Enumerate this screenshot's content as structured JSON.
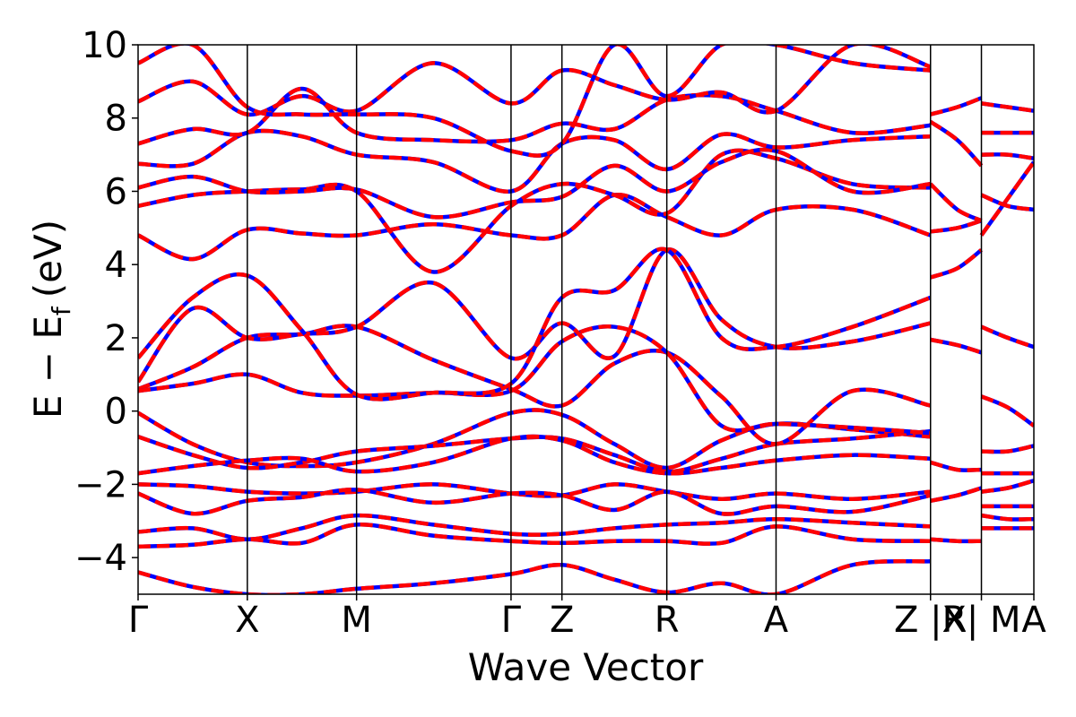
{
  "chart_data": {
    "type": "line",
    "title": "",
    "xlabel": "Wave Vector",
    "ylabel": "E − E",
    "ylabel_subscript": "f",
    "ylabel_unit": "(eV)",
    "ylim": [
      -5,
      10
    ],
    "y_ticks": [
      -4,
      -2,
      0,
      2,
      4,
      6,
      8,
      10
    ],
    "y_tick_labels": [
      "−4",
      "−2",
      "0",
      "2",
      "4",
      "6",
      "8",
      "10"
    ],
    "k_path_positions": [
      0,
      0.5,
      1.0,
      1.707,
      1.94,
      2.42,
      2.92,
      3.627,
      3.86,
      4.1
    ],
    "k_point_labels": [
      "Γ",
      "X",
      "M",
      "Γ",
      "Z",
      "R",
      "A",
      "Z |R",
      "X| M",
      "A"
    ],
    "grid": false,
    "colors": {
      "band_solid": "#ff0000",
      "band_dashed": "#0000ff"
    },
    "series": [
      {
        "x": [
          0,
          0.25,
          0.5,
          0.75,
          1.0,
          1.35,
          1.707,
          1.94,
          2.18,
          2.42,
          2.67,
          2.92,
          3.27,
          3.627
        ],
        "y": [
          -0.05,
          -0.9,
          -1.4,
          -1.5,
          -1.4,
          -0.9,
          -0.05,
          -0.1,
          -0.9,
          -1.55,
          -0.8,
          -0.35,
          -0.5,
          -0.7
        ]
      },
      {
        "x": [
          0,
          0.25,
          0.5,
          0.75,
          1.0,
          1.35,
          1.707,
          1.94,
          2.18,
          2.42,
          2.67,
          2.92,
          3.27,
          3.627
        ],
        "y": [
          -0.7,
          -1.2,
          -1.55,
          -1.4,
          -1.1,
          -0.95,
          -0.75,
          -0.75,
          -1.2,
          -1.65,
          -1.3,
          -0.9,
          -0.75,
          -0.55
        ]
      },
      {
        "x": [
          0,
          0.25,
          0.5,
          0.75,
          1.0,
          1.35,
          1.707,
          1.94,
          2.18,
          2.42,
          2.67,
          2.92,
          3.27,
          3.627
        ],
        "y": [
          -1.7,
          -1.5,
          -1.35,
          -1.3,
          -1.65,
          -1.4,
          -0.75,
          -0.8,
          -1.4,
          -1.7,
          -1.55,
          -1.35,
          -1.2,
          -1.3
        ]
      },
      {
        "x": [
          0,
          0.25,
          0.5,
          0.75,
          1.0,
          1.35,
          1.707,
          1.94,
          2.18,
          2.42,
          2.67,
          2.92,
          3.27,
          3.627
        ],
        "y": [
          -2.0,
          -2.05,
          -2.2,
          -2.25,
          -2.2,
          -2.0,
          -2.25,
          -2.3,
          -2.0,
          -2.2,
          -2.4,
          -2.25,
          -2.4,
          -2.2
        ]
      },
      {
        "x": [
          0,
          0.25,
          0.5,
          0.75,
          1.0,
          1.35,
          1.707,
          1.94,
          2.18,
          2.42,
          2.67,
          2.92,
          3.27,
          3.627
        ],
        "y": [
          -2.25,
          -2.8,
          -2.45,
          -2.35,
          -2.15,
          -2.5,
          -2.25,
          -2.3,
          -2.7,
          -2.2,
          -2.8,
          -2.6,
          -2.75,
          -2.3
        ]
      },
      {
        "x": [
          0,
          0.25,
          0.5,
          0.75,
          1.0,
          1.35,
          1.707,
          1.94,
          2.18,
          2.42,
          2.67,
          2.92,
          3.27,
          3.627
        ],
        "y": [
          -3.3,
          -3.2,
          -3.5,
          -3.2,
          -2.85,
          -3.1,
          -3.35,
          -3.35,
          -3.2,
          -3.1,
          -3.05,
          -2.95,
          -3.05,
          -3.15
        ]
      },
      {
        "x": [
          0,
          0.25,
          0.5,
          0.75,
          1.0,
          1.35,
          1.707,
          1.94,
          2.18,
          2.42,
          2.67,
          2.92,
          3.27,
          3.627
        ],
        "y": [
          -3.7,
          -3.65,
          -3.5,
          -3.6,
          -3.1,
          -3.4,
          -3.55,
          -3.6,
          -3.55,
          -3.55,
          -3.6,
          -3.15,
          -3.5,
          -3.55
        ]
      },
      {
        "x": [
          0,
          0.25,
          0.5,
          0.75,
          1.0,
          1.35,
          1.707,
          1.94,
          2.18,
          2.42,
          2.67,
          2.92,
          3.27,
          3.627
        ],
        "y": [
          -4.4,
          -4.8,
          -5.0,
          -5.0,
          -4.85,
          -4.7,
          -4.45,
          -4.2,
          -4.6,
          -4.95,
          -4.7,
          -5.0,
          -4.2,
          -4.1
        ]
      },
      {
        "x": [
          0,
          0.25,
          0.5,
          0.75,
          1.0,
          1.35,
          1.707,
          1.94,
          2.18,
          2.42,
          2.67,
          2.92,
          3.27,
          3.627
        ],
        "y": [
          0.6,
          1.2,
          2.0,
          2.1,
          2.3,
          1.4,
          0.6,
          0.15,
          1.3,
          1.6,
          0.4,
          -0.9,
          0.55,
          0.15
        ]
      },
      {
        "x": [
          0,
          0.25,
          0.5,
          0.75,
          1.0,
          1.35,
          1.707,
          1.94,
          2.18,
          2.42,
          2.67,
          2.92,
          3.27,
          3.627
        ],
        "y": [
          0.55,
          0.75,
          1.0,
          0.5,
          0.42,
          0.5,
          0.55,
          1.9,
          2.3,
          1.6,
          -0.4,
          -0.35,
          -0.45,
          -0.6
        ]
      },
      {
        "x": [
          0,
          0.25,
          0.5,
          0.75,
          1.0,
          1.35,
          1.707,
          1.94,
          2.18,
          2.42,
          2.67,
          2.92,
          3.27,
          3.627
        ],
        "y": [
          0.8,
          2.8,
          2.0,
          2.1,
          2.3,
          3.5,
          1.45,
          2.4,
          1.5,
          4.4,
          2.5,
          1.75,
          1.9,
          2.4
        ]
      },
      {
        "x": [
          0,
          0.25,
          0.5,
          0.75,
          1.0,
          1.35,
          1.707,
          1.94,
          2.18,
          2.42,
          2.67,
          2.92,
          3.27,
          3.627
        ],
        "y": [
          1.45,
          3.1,
          3.7,
          2.2,
          0.45,
          0.5,
          0.75,
          3.1,
          3.3,
          4.4,
          2.0,
          1.75,
          2.3,
          3.1
        ]
      },
      {
        "x": [
          0,
          0.25,
          0.5,
          0.75,
          1.0,
          1.35,
          1.707,
          1.94,
          2.18,
          2.42,
          2.67,
          2.92,
          3.27,
          3.627
        ],
        "y": [
          4.8,
          4.15,
          4.95,
          4.85,
          4.8,
          5.1,
          4.8,
          4.8,
          5.9,
          5.3,
          4.8,
          5.5,
          5.5,
          4.8
        ]
      },
      {
        "x": [
          0,
          0.25,
          0.5,
          0.75,
          1.0,
          1.35,
          1.707,
          1.94,
          2.18,
          2.42,
          2.67,
          2.92,
          3.27,
          3.627
        ],
        "y": [
          5.6,
          5.9,
          6.0,
          6.05,
          6.0,
          3.8,
          5.6,
          6.2,
          5.9,
          5.4,
          7.0,
          6.9,
          6.2,
          6.1
        ]
      },
      {
        "x": [
          0,
          0.25,
          0.5,
          0.75,
          1.0,
          1.35,
          1.707,
          1.94,
          2.18,
          2.42,
          2.67,
          2.92,
          3.27,
          3.627
        ],
        "y": [
          6.1,
          6.4,
          6.0,
          6.0,
          6.05,
          5.3,
          5.7,
          5.85,
          6.7,
          6.0,
          6.8,
          7.1,
          6.0,
          6.2
        ]
      },
      {
        "x": [
          0,
          0.25,
          0.5,
          0.75,
          1.0,
          1.35,
          1.707,
          1.94,
          2.18,
          2.42,
          2.67,
          2.92,
          3.27,
          3.627
        ],
        "y": [
          6.75,
          6.75,
          7.6,
          7.5,
          7.0,
          6.8,
          6.0,
          7.3,
          7.4,
          6.6,
          7.55,
          7.2,
          7.4,
          7.5
        ]
      },
      {
        "x": [
          0,
          0.25,
          0.5,
          0.75,
          1.0,
          1.35,
          1.707,
          1.94,
          2.18,
          2.42,
          2.67,
          2.92,
          3.27,
          3.627
        ],
        "y": [
          7.3,
          7.7,
          7.6,
          8.8,
          7.6,
          7.4,
          7.4,
          7.85,
          7.7,
          8.5,
          8.6,
          8.2,
          7.6,
          7.8
        ]
      },
      {
        "x": [
          0,
          0.25,
          0.5,
          0.75,
          1.0,
          1.35,
          1.707,
          1.94,
          2.18,
          2.42,
          2.67,
          2.92,
          3.27,
          3.627
        ],
        "y": [
          8.45,
          9.0,
          8.1,
          8.6,
          8.2,
          9.5,
          8.4,
          9.3,
          8.9,
          8.5,
          8.7,
          8.2,
          10.0,
          9.4
        ]
      },
      {
        "x": [
          0,
          0.25,
          0.5,
          0.75,
          1.0,
          1.35,
          1.707,
          1.94,
          2.18,
          2.42,
          2.67,
          2.92,
          3.27,
          3.627
        ],
        "y": [
          9.5,
          10.0,
          8.3,
          8.1,
          8.1,
          8.0,
          7.1,
          7.3,
          10.0,
          8.6,
          10.0,
          10.0,
          9.5,
          9.3
        ]
      },
      {
        "x": [
          3.627,
          3.75,
          3.86
        ],
        "y": [
          -1.4,
          -1.6,
          -1.6
        ]
      },
      {
        "x": [
          3.627,
          3.75,
          3.86
        ],
        "y": [
          -2.45,
          -2.3,
          -2.1
        ]
      },
      {
        "x": [
          3.627,
          3.75,
          3.86
        ],
        "y": [
          -3.5,
          -3.55,
          -3.55
        ]
      },
      {
        "x": [
          3.627,
          3.75,
          3.86
        ],
        "y": [
          1.95,
          1.8,
          1.6
        ]
      },
      {
        "x": [
          3.627,
          3.75,
          3.86
        ],
        "y": [
          3.65,
          3.9,
          4.4
        ]
      },
      {
        "x": [
          3.627,
          3.75,
          3.86
        ],
        "y": [
          4.9,
          5.0,
          5.2
        ]
      },
      {
        "x": [
          3.627,
          3.75,
          3.86
        ],
        "y": [
          6.2,
          5.5,
          5.2
        ]
      },
      {
        "x": [
          3.627,
          3.75,
          3.86
        ],
        "y": [
          8.1,
          8.3,
          8.55
        ]
      },
      {
        "x": [
          3.627,
          3.75,
          3.86
        ],
        "y": [
          7.9,
          7.4,
          6.7
        ]
      },
      {
        "x": [
          3.86,
          3.98,
          4.1
        ],
        "y": [
          -1.1,
          -1.1,
          -0.95
        ]
      },
      {
        "x": [
          3.86,
          3.98,
          4.1
        ],
        "y": [
          -1.7,
          -1.7,
          -1.7
        ]
      },
      {
        "x": [
          3.86,
          3.98,
          4.1
        ],
        "y": [
          -2.2,
          -2.1,
          -1.9
        ]
      },
      {
        "x": [
          3.86,
          3.98,
          4.1
        ],
        "y": [
          -2.6,
          -2.6,
          -2.6
        ]
      },
      {
        "x": [
          3.86,
          3.98,
          4.1
        ],
        "y": [
          -2.85,
          -2.95,
          -2.95
        ]
      },
      {
        "x": [
          3.86,
          3.98,
          4.1
        ],
        "y": [
          -3.2,
          -3.2,
          -3.2
        ]
      },
      {
        "x": [
          3.86,
          3.98,
          4.1
        ],
        "y": [
          0.4,
          0.1,
          -0.4
        ]
      },
      {
        "x": [
          3.86,
          3.98,
          4.1
        ],
        "y": [
          2.3,
          2.0,
          1.75
        ]
      },
      {
        "x": [
          3.86,
          3.98,
          4.1
        ],
        "y": [
          4.8,
          5.8,
          6.8
        ]
      },
      {
        "x": [
          3.86,
          3.98,
          4.1
        ],
        "y": [
          5.9,
          5.6,
          5.5
        ]
      },
      {
        "x": [
          3.86,
          3.98,
          4.1
        ],
        "y": [
          7.0,
          7.0,
          6.9
        ]
      },
      {
        "x": [
          3.86,
          3.98,
          4.1
        ],
        "y": [
          7.6,
          7.6,
          7.6
        ]
      },
      {
        "x": [
          3.86,
          3.98,
          4.1
        ],
        "y": [
          8.4,
          8.3,
          8.2
        ]
      }
    ]
  }
}
